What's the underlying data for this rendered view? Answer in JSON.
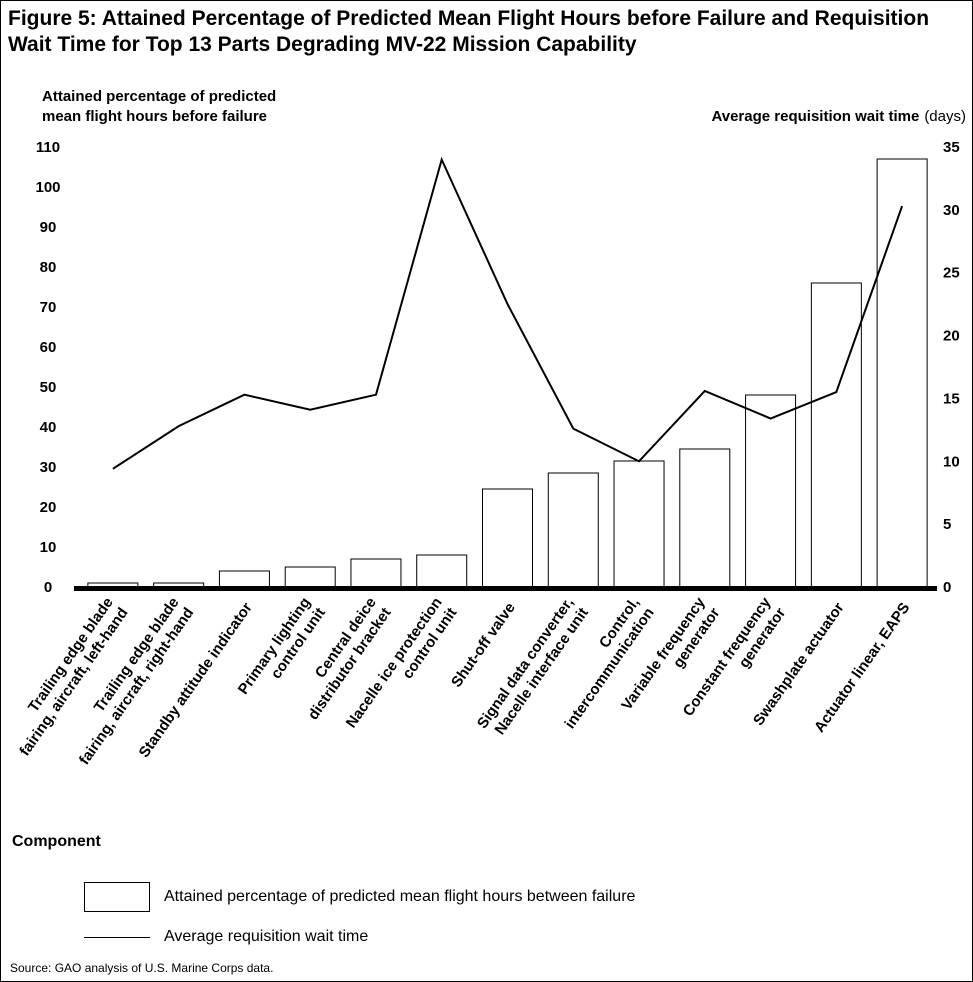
{
  "chart_data": {
    "type": "bar",
    "title": "Figure 5: Attained Percentage of Predicted Mean Flight Hours before Failure and Requisition Wait Time for Top 13 Parts Degrading MV-22 Mission Capability",
    "categories": [
      [
        "Trailing edge blade",
        "fairing, aircraft, left-hand"
      ],
      [
        "Trailing edge blade",
        "fairing, aircraft, right-hand"
      ],
      [
        "Standby attitude indicator"
      ],
      [
        "Primary lighting",
        "control unit"
      ],
      [
        "Central deice",
        "distributor bracket"
      ],
      [
        "Nacelle ice protection",
        "control unit"
      ],
      [
        "Shut-off valve"
      ],
      [
        "Signal data converter,",
        "Nacelle interface unit"
      ],
      [
        "Control,",
        "intercommunication"
      ],
      [
        "Variable frequency",
        "generator"
      ],
      [
        "Constant frequency",
        "generator"
      ],
      [
        "Swashplate actuator"
      ],
      [
        "Actuator linear, EAPS"
      ]
    ],
    "series": [
      {
        "name": "Attained percentage of predicted mean flight hours between failure",
        "type": "bar",
        "axis": "left",
        "values": [
          1,
          1,
          4,
          5,
          7,
          8,
          24.5,
          28.5,
          31.5,
          34.5,
          48,
          76,
          107
        ]
      },
      {
        "name": "Average requisition wait time",
        "type": "line",
        "axis": "right",
        "values": [
          9.4,
          12.8,
          15.3,
          14.1,
          15.3,
          34,
          22.5,
          12.6,
          10,
          15.6,
          13.4,
          15.5,
          30.3
        ]
      }
    ],
    "y_left": {
      "label_lines": [
        "Attained percentage of predicted",
        "mean flight hours before failure"
      ],
      "ylim": [
        0,
        110
      ],
      "ticks": [
        0,
        10,
        20,
        30,
        40,
        50,
        60,
        70,
        80,
        90,
        100,
        110
      ]
    },
    "y_right": {
      "label_bold": "Average requisition wait time",
      "label_unit": "(days)",
      "ylim": [
        0,
        35
      ],
      "ticks": [
        0,
        5,
        10,
        15,
        20,
        25,
        30,
        35
      ]
    },
    "xlabel": "Component",
    "grid": false,
    "legend_position": "bottom-left"
  },
  "source": "Source: GAO analysis of U.S. Marine Corps data."
}
